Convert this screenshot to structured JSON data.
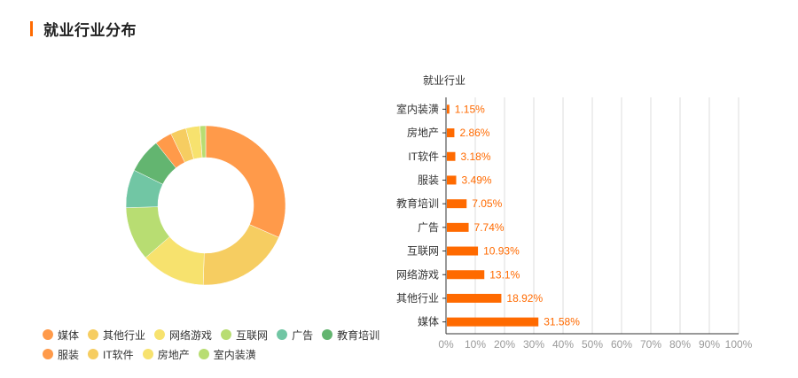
{
  "section": {
    "title": "就业行业分布",
    "accent_color": "#ff6a00"
  },
  "chart_data": [
    {
      "type": "pie",
      "variant": "donut",
      "title": "",
      "slices": [
        {
          "label": "媒体",
          "value": 31.58,
          "color": "#ff9a4a"
        },
        {
          "label": "其他行业",
          "value": 18.92,
          "color": "#f6cd61"
        },
        {
          "label": "网络游戏",
          "value": 13.1,
          "color": "#f7e26e"
        },
        {
          "label": "互联网",
          "value": 10.93,
          "color": "#b8dd72"
        },
        {
          "label": "广告",
          "value": 7.74,
          "color": "#71c6a4"
        },
        {
          "label": "教育培训",
          "value": 7.05,
          "color": "#63b570"
        },
        {
          "label": "服装",
          "value": 3.49,
          "color": "#ff9a4a"
        },
        {
          "label": "IT软件",
          "value": 3.18,
          "color": "#f6cd61"
        },
        {
          "label": "房地产",
          "value": 2.86,
          "color": "#f7e26e"
        },
        {
          "label": "室内装潢",
          "value": 1.15,
          "color": "#b8dd72"
        }
      ],
      "legend_rows": [
        [
          "媒体",
          "其他行业",
          "网络游戏",
          "互联网",
          "广告",
          "教育培训"
        ],
        [
          "服装",
          "IT软件",
          "房地产",
          "室内装潢"
        ]
      ],
      "legend_position": "bottom-left"
    },
    {
      "type": "bar",
      "orientation": "horizontal",
      "ylabel": "就业行业",
      "xlabel": "",
      "categories": [
        "室内装潢",
        "房地产",
        "IT软件",
        "服装",
        "教育培训",
        "广告",
        "互联网",
        "网络游戏",
        "其他行业",
        "媒体"
      ],
      "values": [
        1.15,
        2.86,
        3.18,
        3.49,
        7.05,
        7.74,
        10.93,
        13.1,
        18.92,
        31.58
      ],
      "data_labels": [
        "1.15%",
        "2.86%",
        "3.18%",
        "3.49%",
        "7.05%",
        "7.74%",
        "10.93%",
        "13.1%",
        "18.92%",
        "31.58%"
      ],
      "xlim": [
        0,
        100
      ],
      "x_ticks": [
        "0%",
        "10%",
        "20%",
        "30%",
        "40%",
        "50%",
        "60%",
        "70%",
        "80%",
        "90%",
        "100%"
      ],
      "bar_color": "#ff6a00",
      "label_color": "#ff6a00",
      "grid": true
    }
  ]
}
